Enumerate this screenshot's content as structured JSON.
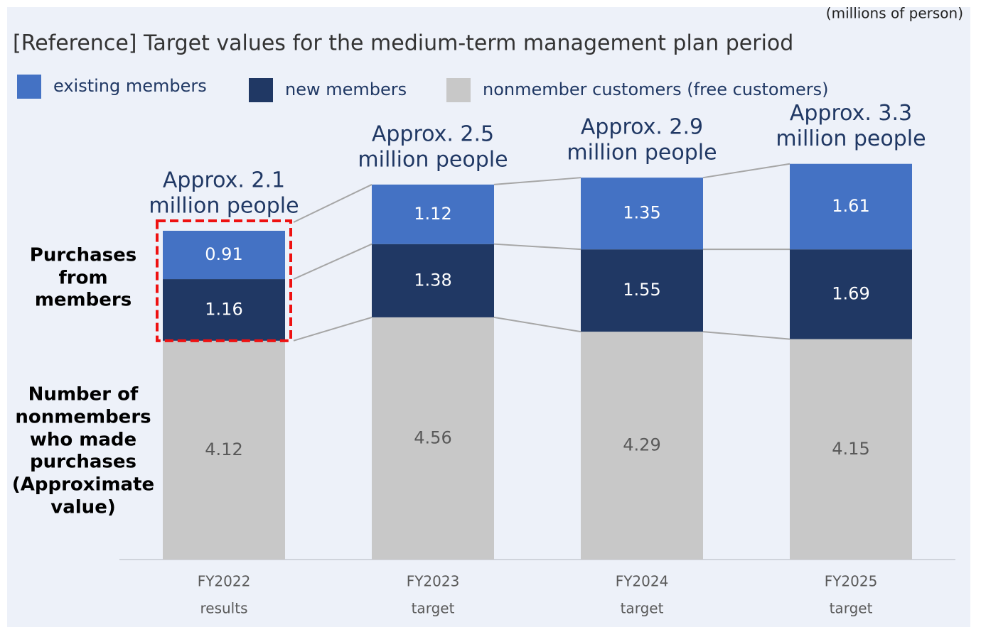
{
  "chart_data": {
    "type": "stacked_bar",
    "title": "[Reference] Target values for the medium-term management plan period",
    "unit_label": "(millions of person)",
    "categories": [
      [
        "FY2022",
        "results"
      ],
      [
        "FY2023",
        "target"
      ],
      [
        "FY2024",
        "target"
      ],
      [
        "FY2025",
        "target"
      ]
    ],
    "series": [
      {
        "name": "nonmember customers (free customers)",
        "color": "#c8c8c8",
        "values": [
          4.12,
          4.56,
          4.29,
          4.15
        ]
      },
      {
        "name": "new members",
        "color": "#203864",
        "values": [
          1.16,
          1.38,
          1.55,
          1.69
        ]
      },
      {
        "name": "existing members",
        "color": "#4472c4",
        "values": [
          0.91,
          1.12,
          1.35,
          1.61
        ]
      }
    ],
    "legend_order": [
      2,
      1,
      0
    ],
    "total_labels": [
      [
        "Approx. 2.1",
        "million people"
      ],
      [
        "Approx. 2.5",
        "million people"
      ],
      [
        "Approx. 2.9",
        "million people"
      ],
      [
        "Approx. 3.3",
        "million people"
      ]
    ],
    "side_labels": [
      [
        "Purchases",
        "from",
        "members"
      ],
      [
        "Number of",
        "nonmembers",
        "who made",
        "purchases",
        "(Approximate",
        "value)"
      ]
    ],
    "ylim": [
      0,
      7.5
    ]
  }
}
